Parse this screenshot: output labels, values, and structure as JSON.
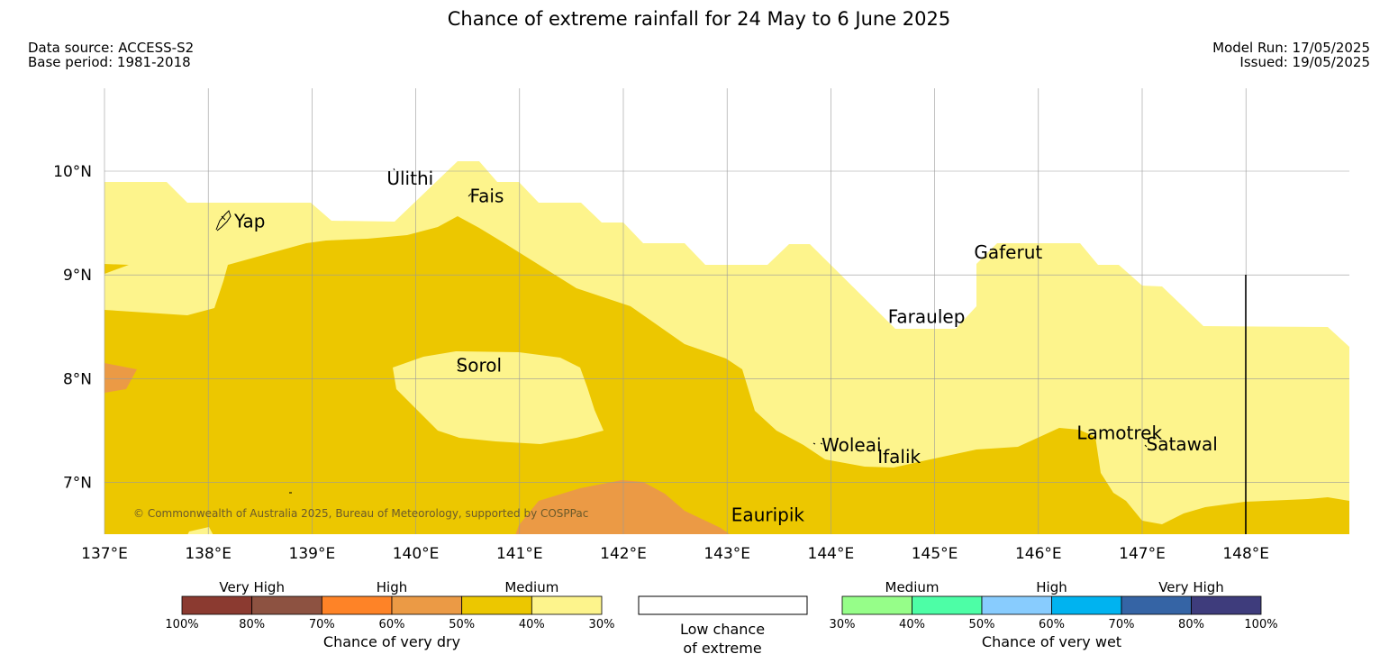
{
  "title": "Chance of extreme rainfall for 24 May to 6 June 2025",
  "data_source": "Data source: ACCESS-S2",
  "base_period": "Base period: 1981-2018",
  "model_run": "Model Run: 17/05/2025",
  "issued": "Issued: 19/05/2025",
  "copyright": "© Commonwealth of Australia 2025, Bureau of Meteorology, supported by COSPPac",
  "map": {
    "lon_range": [
      137,
      149
    ],
    "lat_range": [
      6.5,
      10.8
    ],
    "lon_ticks": [
      "137°E",
      "138°E",
      "139°E",
      "140°E",
      "141°E",
      "142°E",
      "143°E",
      "144°E",
      "145°E",
      "146°E",
      "147°E",
      "148°E"
    ],
    "lat_ticks": [
      "10°N",
      "9°N",
      "8°N",
      "7°N"
    ],
    "places": [
      {
        "name": "Yap",
        "lon": 138.25,
        "lat": 9.52
      },
      {
        "name": "Ulithi",
        "lon": 139.72,
        "lat": 9.93
      },
      {
        "name": "Fais",
        "lon": 140.52,
        "lat": 9.76
      },
      {
        "name": "Gaferut",
        "lon": 145.38,
        "lat": 9.22
      },
      {
        "name": "Faraulep",
        "lon": 144.55,
        "lat": 8.6
      },
      {
        "name": "Sorol",
        "lon": 140.39,
        "lat": 8.13
      },
      {
        "name": "Woleai",
        "lon": 143.91,
        "lat": 7.36
      },
      {
        "name": "Ifalik",
        "lon": 144.45,
        "lat": 7.25
      },
      {
        "name": "Lamotrek",
        "lon": 146.37,
        "lat": 7.48
      },
      {
        "name": "Satawal",
        "lon": 147.04,
        "lat": 7.37
      },
      {
        "name": "Eauripik",
        "lon": 143.04,
        "lat": 6.69
      }
    ],
    "colors": {
      "medium_dry_30_40": "#fdf48c",
      "medium_dry_40_50": "#ecc700",
      "high_dry_50_60": "#eb9a45"
    }
  },
  "legend": {
    "dry": {
      "groups": [
        "Very High",
        "High",
        "Medium"
      ],
      "ticks": [
        "100%",
        "80%",
        "70%",
        "60%",
        "50%",
        "40%",
        "30%"
      ],
      "colors": [
        "#8b3a30",
        "#8d5241",
        "#fe8327",
        "#eb9a45",
        "#ecc700",
        "#fdf48c"
      ],
      "caption": "Chance of very dry"
    },
    "low": {
      "line1": "Low chance",
      "line2": "of extreme",
      "color": "#ffffff"
    },
    "wet": {
      "groups": [
        "Medium",
        "High",
        "Very High"
      ],
      "ticks": [
        "30%",
        "40%",
        "50%",
        "60%",
        "70%",
        "80%",
        "100%"
      ],
      "colors": [
        "#96fe89",
        "#4dfea6",
        "#88ccfe",
        "#00b3f0",
        "#3564a5",
        "#3e3c7c"
      ],
      "caption": "Chance of very wet"
    }
  }
}
